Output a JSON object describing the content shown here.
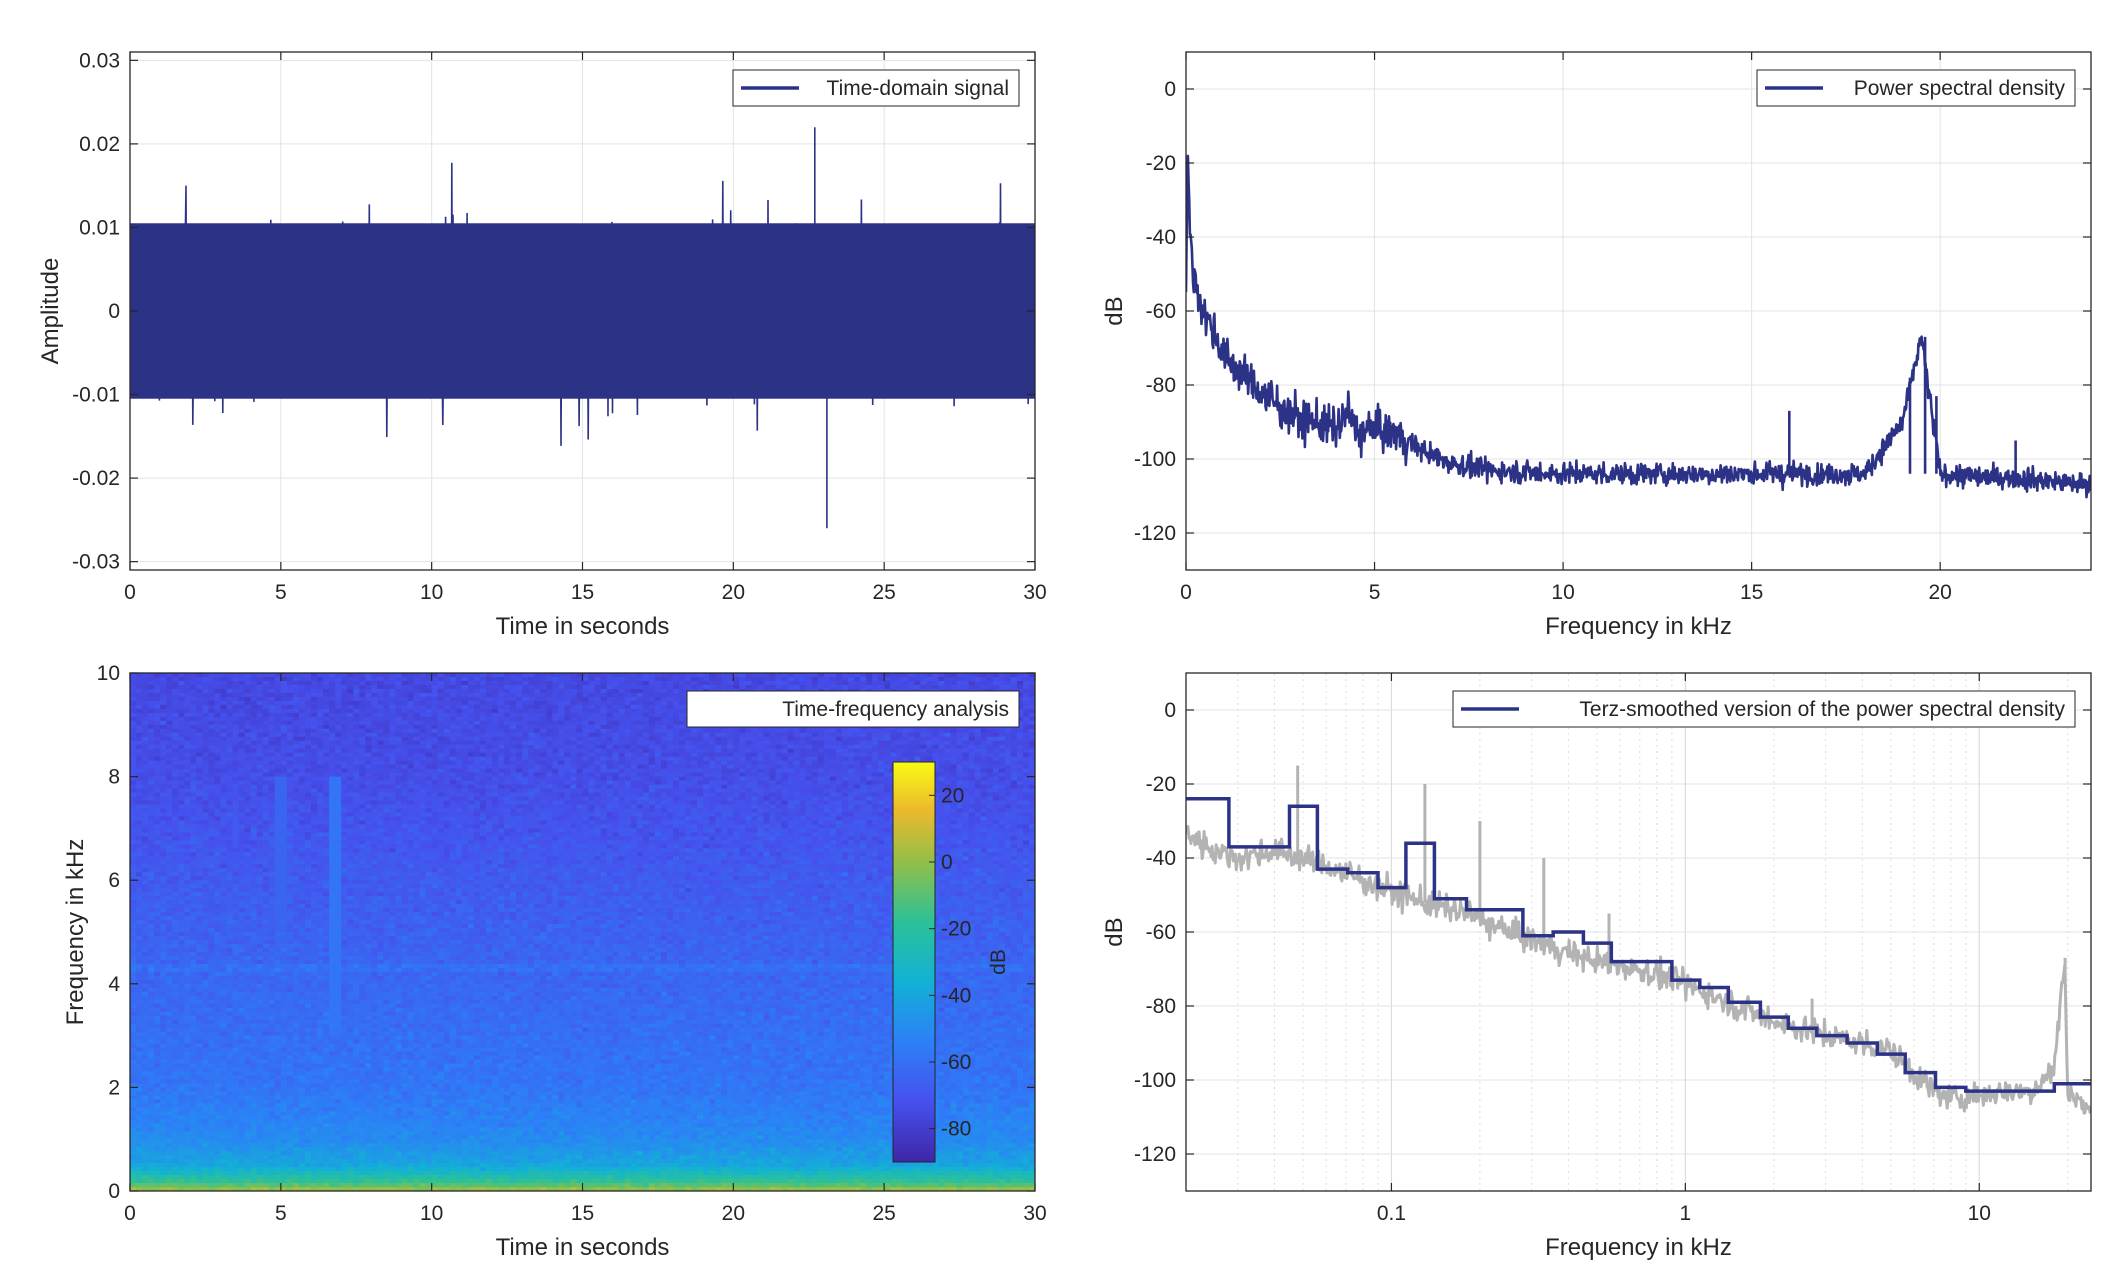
{
  "chart_data": [
    {
      "type": "line",
      "xlabel": "Time in seconds",
      "ylabel": "Amplitude",
      "xlim": [
        0,
        30
      ],
      "ylim": [
        -0.031,
        0.031
      ],
      "xticks": [
        0,
        5,
        10,
        15,
        20,
        25,
        30
      ],
      "yticks": [
        -0.03,
        -0.02,
        -0.01,
        0,
        0.01,
        0.02,
        0.03
      ],
      "ytick_labels": [
        "-0.03",
        "-0.02",
        "-0.01",
        "0",
        "0.01",
        "0.02",
        "0.03"
      ],
      "grid": true,
      "legend_position": "top-right",
      "series": [
        {
          "name": "Time-domain signal",
          "color": "#2c3286",
          "envelope_note": "dense noise",
          "typical_range": [
            -0.013,
            0.013
          ],
          "peak_max": 0.022,
          "peak_min": -0.026
        }
      ]
    },
    {
      "type": "line",
      "xlabel": "Frequency in kHz",
      "ylabel": "dB",
      "xlim": [
        0,
        24
      ],
      "ylim": [
        -130,
        10
      ],
      "xticks": [
        0,
        5,
        10,
        15,
        20
      ],
      "yticks": [
        -120,
        -100,
        -80,
        -60,
        -40,
        -20,
        0
      ],
      "grid": true,
      "legend_position": "top-right",
      "series": [
        {
          "name": "Power spectral density",
          "color": "#2c3286",
          "x": [
            0,
            0.05,
            0.1,
            0.2,
            0.4,
            0.6,
            0.8,
            1,
            1.5,
            2,
            2.5,
            3,
            3.5,
            4,
            4.3,
            4.5,
            5,
            5.5,
            6,
            6.5,
            7,
            8,
            10,
            12,
            14,
            16,
            18,
            19,
            19.5,
            20,
            21,
            22,
            23,
            24
          ],
          "y": [
            -55,
            -15,
            -40,
            -50,
            -58,
            -63,
            -67,
            -72,
            -77,
            -82,
            -86,
            -89,
            -90,
            -92,
            -87,
            -93,
            -92,
            -93,
            -96,
            -99,
            -101,
            -103,
            -104,
            -104,
            -104,
            -104,
            -104,
            -90,
            -67,
            -104,
            -105,
            -105,
            -106,
            -107
          ],
          "spikes": [
            {
              "x": 16.0,
              "y": -87
            },
            {
              "x": 19.2,
              "y": -78
            },
            {
              "x": 19.6,
              "y": -67
            },
            {
              "x": 19.9,
              "y": -83
            },
            {
              "x": 22.0,
              "y": -95
            }
          ]
        }
      ]
    },
    {
      "type": "heatmap",
      "xlabel": "Time in seconds",
      "ylabel": "Frequency in kHz",
      "xlim": [
        0,
        30
      ],
      "ylim": [
        0,
        10
      ],
      "xticks": [
        0,
        5,
        10,
        15,
        20,
        25,
        30
      ],
      "yticks": [
        0,
        2,
        4,
        6,
        8,
        10
      ],
      "legend_position": "top-right",
      "legend_label": "Time-frequency analysis",
      "colorbar": {
        "label": "dB",
        "range": [
          -90,
          30
        ],
        "ticks": [
          -80,
          -60,
          -40,
          -20,
          0,
          20
        ]
      },
      "features": [
        {
          "kind": "horizontal-band",
          "freq_khz": 4.3,
          "level_db": -60
        },
        {
          "kind": "horizontal-band",
          "freq_khz": 3.5,
          "level_db": -62
        },
        {
          "kind": "vertical-line",
          "time_s": 6.8,
          "level_db": -58
        },
        {
          "kind": "vertical-line",
          "time_s": 5.0,
          "level_db": -64
        }
      ],
      "level_profile_db": [
        {
          "freq_khz": 0,
          "level_db": 5
        },
        {
          "freq_khz": 0.15,
          "level_db": -15
        },
        {
          "freq_khz": 0.5,
          "level_db": -40
        },
        {
          "freq_khz": 1,
          "level_db": -50
        },
        {
          "freq_khz": 2,
          "level_db": -58
        },
        {
          "freq_khz": 4,
          "level_db": -63
        },
        {
          "freq_khz": 6,
          "level_db": -68
        },
        {
          "freq_khz": 8,
          "level_db": -73
        },
        {
          "freq_khz": 10,
          "level_db": -75
        }
      ]
    },
    {
      "type": "line",
      "xlabel": "Frequency in kHz",
      "ylabel": "dB",
      "xscale": "log",
      "xlim": [
        0.02,
        24
      ],
      "ylim": [
        -130,
        10
      ],
      "xticks": [
        0.1,
        1,
        10
      ],
      "xtick_labels": [
        "0.1",
        "1",
        "10"
      ],
      "yticks": [
        -120,
        -100,
        -80,
        -60,
        -40,
        -20,
        0
      ],
      "grid": true,
      "legend_position": "top-right",
      "series": [
        {
          "name": "Terz-smoothed version of the power spectral density",
          "color": "#2c3286",
          "step": true,
          "x": [
            0.02,
            0.028,
            0.035,
            0.045,
            0.056,
            0.071,
            0.09,
            0.112,
            0.14,
            0.18,
            0.224,
            0.28,
            0.355,
            0.45,
            0.56,
            0.71,
            0.9,
            1.12,
            1.4,
            1.8,
            2.24,
            2.8,
            3.55,
            4.5,
            5.6,
            7.1,
            9,
            11.2,
            14,
            18,
            22.4,
            24
          ],
          "y": [
            -24,
            -37,
            -37,
            -26,
            -43,
            -44,
            -48,
            -36,
            -51,
            -54,
            -54,
            -61,
            -60,
            -63,
            -68,
            -68,
            -73,
            -75,
            -79,
            -83,
            -86,
            -88,
            -90,
            -93,
            -98,
            -102,
            -103,
            -103,
            -103,
            -101,
            -101,
            -101
          ]
        },
        {
          "name": "",
          "color": "#b3b3b3",
          "x": [
            0.02,
            0.025,
            0.03,
            0.04,
            0.05,
            0.06,
            0.08,
            0.1,
            0.13,
            0.18,
            0.25,
            0.35,
            0.5,
            0.7,
            1,
            1.5,
            2,
            3,
            4,
            5,
            6,
            7,
            8,
            10,
            12,
            15,
            18,
            19.5,
            20,
            22,
            24
          ],
          "y": [
            -33,
            -38,
            -40,
            -38,
            -40,
            -42,
            -46,
            -49,
            -52,
            -55,
            -60,
            -64,
            -68,
            -70,
            -74,
            -80,
            -84,
            -88,
            -90,
            -92,
            -98,
            -103,
            -105,
            -104,
            -103,
            -103,
            -97,
            -67,
            -103,
            -106,
            -109
          ],
          "spikes": [
            {
              "x": 0.048,
              "y": -15
            },
            {
              "x": 0.13,
              "y": -20
            },
            {
              "x": 0.2,
              "y": -30
            },
            {
              "x": 0.33,
              "y": -40
            },
            {
              "x": 0.55,
              "y": -55
            },
            {
              "x": 2.7,
              "y": -78
            },
            {
              "x": 19.6,
              "y": -67
            }
          ]
        }
      ]
    }
  ]
}
